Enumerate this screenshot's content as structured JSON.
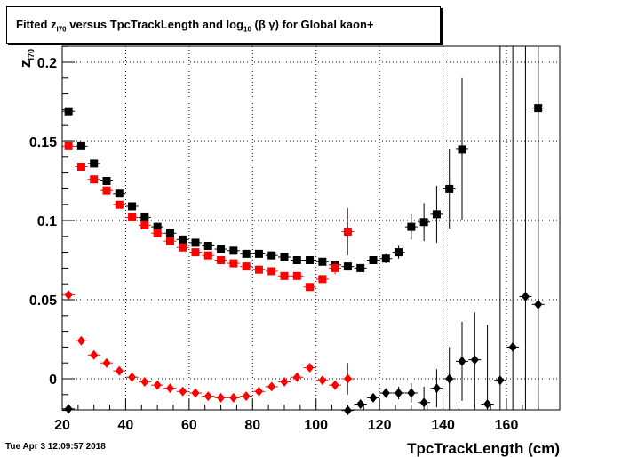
{
  "chart_data": {
    "type": "scatter",
    "title": {
      "prefix": "Fitted  z",
      "z_sub": "I70",
      "mid": "  versus TpcTrackLength and log",
      "log_sub": "10",
      "suffix": " (β γ) for Global kaon+"
    },
    "xlabel": "TpcTrackLength (cm)",
    "ylabel": "z",
    "ylabel_sub": "I70",
    "xlim": [
      20,
      170
    ],
    "ylim": [
      -0.02,
      0.21
    ],
    "xticks": [
      "20",
      "40",
      "60",
      "80",
      "100",
      "120",
      "140",
      "160"
    ],
    "yticks": [
      "0",
      "0.05",
      "0.1",
      "0.15",
      "0.2"
    ],
    "ytick_values": [
      0,
      0.05,
      0.1,
      0.15,
      0.2
    ],
    "xtick_values": [
      20,
      40,
      60,
      80,
      100,
      120,
      140,
      160
    ],
    "grid": true,
    "series": [
      {
        "marker": "square",
        "color": "#000000",
        "points": [
          {
            "x": 22,
            "y": 0.169,
            "err": 0.001
          },
          {
            "x": 26,
            "y": 0.147,
            "err": 0.001
          },
          {
            "x": 30,
            "y": 0.136,
            "err": 0.001
          },
          {
            "x": 34,
            "y": 0.125,
            "err": 0.001
          },
          {
            "x": 38,
            "y": 0.117,
            "err": 0.001
          },
          {
            "x": 42,
            "y": 0.109,
            "err": 0.001
          },
          {
            "x": 46,
            "y": 0.102,
            "err": 0.001
          },
          {
            "x": 50,
            "y": 0.096,
            "err": 0.001
          },
          {
            "x": 54,
            "y": 0.092,
            "err": 0.001
          },
          {
            "x": 58,
            "y": 0.088,
            "err": 0.001
          },
          {
            "x": 62,
            "y": 0.086,
            "err": 0.001
          },
          {
            "x": 66,
            "y": 0.084,
            "err": 0.001
          },
          {
            "x": 70,
            "y": 0.082,
            "err": 0.001
          },
          {
            "x": 74,
            "y": 0.081,
            "err": 0.001
          },
          {
            "x": 78,
            "y": 0.079,
            "err": 0.001
          },
          {
            "x": 82,
            "y": 0.079,
            "err": 0.001
          },
          {
            "x": 86,
            "y": 0.078,
            "err": 0.001
          },
          {
            "x": 90,
            "y": 0.077,
            "err": 0.001
          },
          {
            "x": 94,
            "y": 0.075,
            "err": 0.001
          },
          {
            "x": 98,
            "y": 0.075,
            "err": 0.001
          },
          {
            "x": 102,
            "y": 0.074,
            "err": 0.001
          },
          {
            "x": 106,
            "y": 0.072,
            "err": 0.001
          },
          {
            "x": 110,
            "y": 0.071,
            "err": 0.002
          },
          {
            "x": 114,
            "y": 0.07,
            "err": 0.002
          },
          {
            "x": 118,
            "y": 0.075,
            "err": 0.002
          },
          {
            "x": 122,
            "y": 0.076,
            "err": 0.003
          },
          {
            "x": 126,
            "y": 0.08,
            "err": 0.004
          },
          {
            "x": 130,
            "y": 0.096,
            "err": 0.008
          },
          {
            "x": 134,
            "y": 0.099,
            "err": 0.012
          },
          {
            "x": 138,
            "y": 0.104,
            "err": 0.018
          },
          {
            "x": 142,
            "y": 0.12,
            "err": 0.025
          },
          {
            "x": 146,
            "y": 0.145,
            "err": 0.045
          },
          {
            "x": 170,
            "y": 0.171,
            "err": 0.2
          }
        ]
      },
      {
        "marker": "square",
        "color": "#ff0000",
        "points": [
          {
            "x": 22,
            "y": 0.147,
            "err": 0.001
          },
          {
            "x": 26,
            "y": 0.134,
            "err": 0.001
          },
          {
            "x": 30,
            "y": 0.126,
            "err": 0.001
          },
          {
            "x": 34,
            "y": 0.119,
            "err": 0.001
          },
          {
            "x": 38,
            "y": 0.11,
            "err": 0.001
          },
          {
            "x": 42,
            "y": 0.102,
            "err": 0.001
          },
          {
            "x": 46,
            "y": 0.097,
            "err": 0.001
          },
          {
            "x": 50,
            "y": 0.092,
            "err": 0.001
          },
          {
            "x": 54,
            "y": 0.087,
            "err": 0.001
          },
          {
            "x": 58,
            "y": 0.083,
            "err": 0.001
          },
          {
            "x": 62,
            "y": 0.08,
            "err": 0.001
          },
          {
            "x": 66,
            "y": 0.078,
            "err": 0.001
          },
          {
            "x": 70,
            "y": 0.075,
            "err": 0.001
          },
          {
            "x": 74,
            "y": 0.073,
            "err": 0.001
          },
          {
            "x": 78,
            "y": 0.071,
            "err": 0.001
          },
          {
            "x": 82,
            "y": 0.069,
            "err": 0.001
          },
          {
            "x": 86,
            "y": 0.068,
            "err": 0.001
          },
          {
            "x": 90,
            "y": 0.065,
            "err": 0.001
          },
          {
            "x": 94,
            "y": 0.065,
            "err": 0.001
          },
          {
            "x": 98,
            "y": 0.058,
            "err": 0.002
          },
          {
            "x": 102,
            "y": 0.063,
            "err": 0.002
          },
          {
            "x": 106,
            "y": 0.07,
            "err": 0.004
          },
          {
            "x": 110,
            "y": 0.093,
            "err": 0.015
          }
        ]
      },
      {
        "marker": "diamond",
        "color": "#000000",
        "points": [
          {
            "x": 22,
            "y": -0.019,
            "err": 0.001
          },
          {
            "x": 110,
            "y": -0.02,
            "err": 0.001
          },
          {
            "x": 114,
            "y": -0.016,
            "err": 0.002
          },
          {
            "x": 118,
            "y": -0.012,
            "err": 0.002
          },
          {
            "x": 122,
            "y": -0.009,
            "err": 0.003
          },
          {
            "x": 126,
            "y": -0.009,
            "err": 0.004
          },
          {
            "x": 130,
            "y": -0.009,
            "err": 0.006
          },
          {
            "x": 134,
            "y": -0.015,
            "err": 0.01
          },
          {
            "x": 138,
            "y": -0.006,
            "err": 0.012
          },
          {
            "x": 142,
            "y": 0.0,
            "err": 0.02
          },
          {
            "x": 146,
            "y": 0.011,
            "err": 0.025
          },
          {
            "x": 150,
            "y": 0.012,
            "err": 0.03
          },
          {
            "x": 154,
            "y": -0.016,
            "err": 0.05
          },
          {
            "x": 158,
            "y": -0.001,
            "err": 0.3
          },
          {
            "x": 162,
            "y": 0.02,
            "err": 0.3
          },
          {
            "x": 166,
            "y": 0.052,
            "err": 0.3
          },
          {
            "x": 170,
            "y": 0.047,
            "err": 0.3
          }
        ]
      },
      {
        "marker": "diamond",
        "color": "#ff0000",
        "points": [
          {
            "x": 22,
            "y": 0.053,
            "err": 0.001
          },
          {
            "x": 26,
            "y": 0.024,
            "err": 0.001
          },
          {
            "x": 30,
            "y": 0.015,
            "err": 0.001
          },
          {
            "x": 34,
            "y": 0.01,
            "err": 0.001
          },
          {
            "x": 38,
            "y": 0.005,
            "err": 0.001
          },
          {
            "x": 42,
            "y": 0.001,
            "err": 0.001
          },
          {
            "x": 46,
            "y": -0.002,
            "err": 0.001
          },
          {
            "x": 50,
            "y": -0.004,
            "err": 0.001
          },
          {
            "x": 54,
            "y": -0.006,
            "err": 0.001
          },
          {
            "x": 58,
            "y": -0.008,
            "err": 0.001
          },
          {
            "x": 62,
            "y": -0.009,
            "err": 0.001
          },
          {
            "x": 66,
            "y": -0.011,
            "err": 0.001
          },
          {
            "x": 70,
            "y": -0.012,
            "err": 0.001
          },
          {
            "x": 74,
            "y": -0.012,
            "err": 0.001
          },
          {
            "x": 78,
            "y": -0.011,
            "err": 0.001
          },
          {
            "x": 82,
            "y": -0.008,
            "err": 0.001
          },
          {
            "x": 86,
            "y": -0.005,
            "err": 0.001
          },
          {
            "x": 90,
            "y": -0.002,
            "err": 0.001
          },
          {
            "x": 94,
            "y": 0.001,
            "err": 0.001
          },
          {
            "x": 98,
            "y": 0.007,
            "err": 0.001
          },
          {
            "x": 102,
            "y": -0.001,
            "err": 0.002
          },
          {
            "x": 106,
            "y": -0.004,
            "err": 0.003
          },
          {
            "x": 110,
            "y": 0.0,
            "err": 0.01
          }
        ]
      }
    ]
  },
  "timestamp": "Tue Apr  3 12:09:57 2018"
}
